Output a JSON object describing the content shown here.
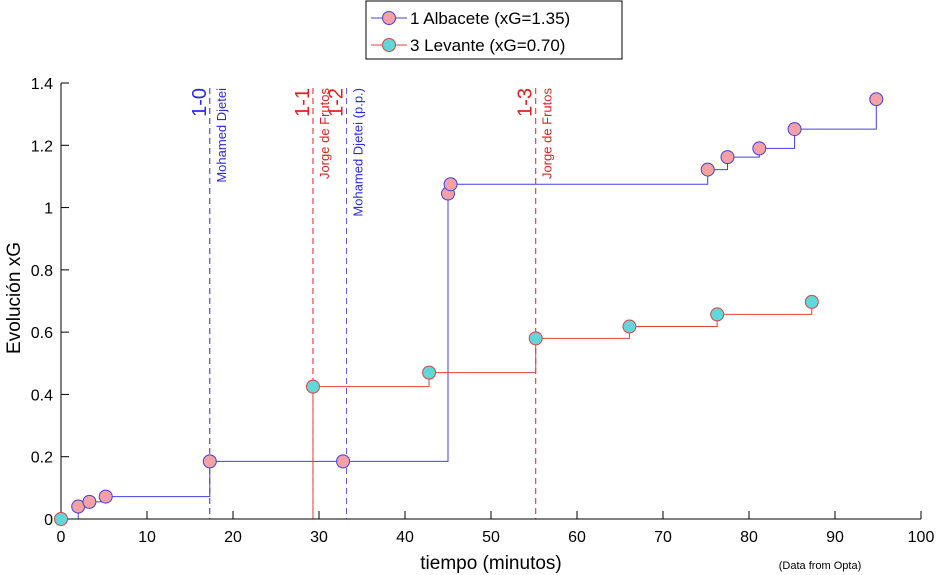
{
  "chart_data": {
    "type": "line",
    "title": "",
    "xlabel": "tiempo (minutos)",
    "ylabel": "Evolución xG",
    "xlim": [
      0,
      100
    ],
    "ylim": [
      0,
      1.4
    ],
    "xticks": [
      0,
      10,
      20,
      30,
      40,
      50,
      60,
      70,
      80,
      90,
      100
    ],
    "yticks": [
      0,
      0.2,
      0.4,
      0.6,
      0.8,
      1,
      1.2,
      1.4
    ],
    "xtick_labels": [
      "0",
      "10",
      "20",
      "30",
      "40",
      "50",
      "60",
      "70",
      "80",
      "90",
      "100"
    ],
    "ytick_labels": [
      "0",
      "0.2",
      "0.4",
      "0.6",
      "0.8",
      "1",
      "1.2",
      "1.4"
    ],
    "grid": false,
    "legend_position": "top",
    "note": "(Data from Opta)",
    "series": [
      {
        "name": "1 Albacete (xG=1.35)",
        "line_color": "#4040e0",
        "marker_color": "#f4a0a4",
        "start": [
          0,
          0
        ],
        "end_x": 95,
        "shots": [
          [
            2,
            0.04
          ],
          [
            3.3,
            0.055
          ],
          [
            5.2,
            0.072
          ],
          [
            17.3,
            0.185
          ],
          [
            32.8,
            0.185
          ],
          [
            45,
            1.045
          ],
          [
            45.3,
            1.075
          ],
          [
            75.2,
            1.122
          ],
          [
            77.5,
            1.162
          ],
          [
            81.2,
            1.19
          ],
          [
            85.3,
            1.252
          ],
          [
            94.8,
            1.348
          ]
        ]
      },
      {
        "name": "3 Levante (xG=0.70)",
        "line_color": "#e04040",
        "marker_color": "#5ed8d8",
        "start": [
          0,
          0
        ],
        "end_x": 88,
        "shots": [
          [
            0,
            0
          ],
          [
            29.3,
            0.425
          ],
          [
            42.8,
            0.47
          ],
          [
            55.2,
            0.58
          ],
          [
            66.1,
            0.618
          ],
          [
            76.3,
            0.657
          ],
          [
            87.3,
            0.697
          ]
        ]
      }
    ],
    "goals": [
      {
        "minute": 17.3,
        "score": "1-0",
        "scorer": "Mohamed Djetei",
        "color": "#2a2ae0"
      },
      {
        "minute": 29.3,
        "score": "1-1",
        "scorer": "Jorge de Frutos",
        "color": "#e02020"
      },
      {
        "minute": 33.2,
        "score": "1-2",
        "scorer": "Mohamed Djetei (p.p.)",
        "color_score": "#e02020",
        "color_name": "#2a2ae0",
        "color": "#6060e0"
      },
      {
        "minute": 55.2,
        "score": "1-3",
        "scorer": "Jorge de Frutos",
        "color": "#e02020"
      }
    ]
  }
}
